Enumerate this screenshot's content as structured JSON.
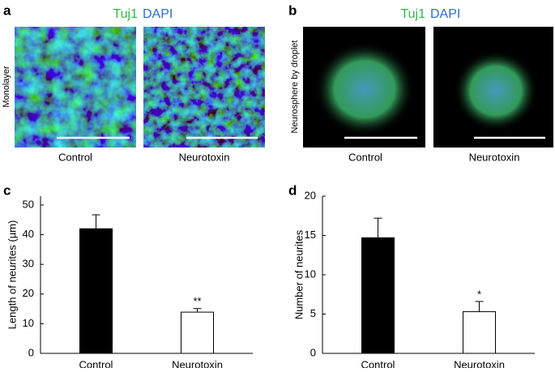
{
  "panels": {
    "a": {
      "label": "a",
      "stain": [
        "Tuj1",
        "DAPI"
      ],
      "side_label": "Monolayer",
      "captions": [
        "Control",
        "Neurotoxin"
      ]
    },
    "b": {
      "label": "b",
      "stain": [
        "Tuj1",
        "DAPI"
      ],
      "side_label": "Neurosphere by droplet",
      "captions": [
        "Control",
        "Neurotoxin"
      ]
    }
  },
  "chart_data": [
    {
      "type": "bar",
      "label": "c",
      "y_label": "Length of neurites (µm)",
      "categories": [
        "Control",
        "Neurotoxin"
      ],
      "values": [
        42,
        13.9
      ],
      "errors": [
        4.7,
        1.2
      ],
      "significance": [
        null,
        "**"
      ],
      "colors": [
        "#000000",
        "#ffffff"
      ],
      "ylim": [
        0,
        53
      ],
      "yticks": [
        0,
        10,
        20,
        30,
        40,
        50
      ]
    },
    {
      "type": "bar",
      "label": "d",
      "y_label": "Number of neurites",
      "categories": [
        "Control",
        "Neurotoxin"
      ],
      "values": [
        14.7,
        5.3
      ],
      "errors": [
        2.5,
        1.3
      ],
      "significance": [
        null,
        "*"
      ],
      "colors": [
        "#000000",
        "#ffffff"
      ],
      "ylim": [
        0,
        20
      ],
      "yticks": [
        0,
        5,
        10,
        15,
        20
      ]
    }
  ]
}
